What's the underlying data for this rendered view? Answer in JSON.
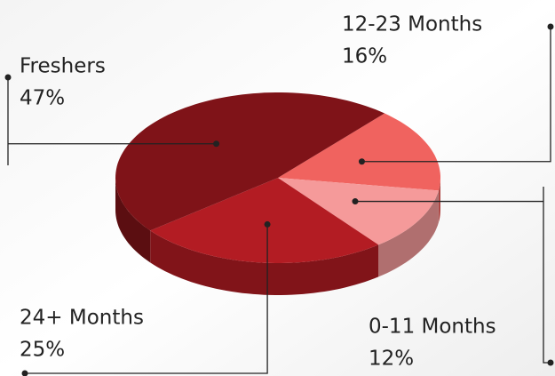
{
  "chart_data": {
    "type": "pie",
    "categories": [
      "12-23 Months",
      "0-11 Months",
      "24+ Months",
      "Freshers"
    ],
    "values": [
      16,
      12,
      25,
      47
    ],
    "value_labels": [
      "16%",
      "12%",
      "25%",
      "47%"
    ],
    "colors": [
      "#f0635f",
      "#f59a9a",
      "#b31c23",
      "#7f1318"
    ]
  }
}
